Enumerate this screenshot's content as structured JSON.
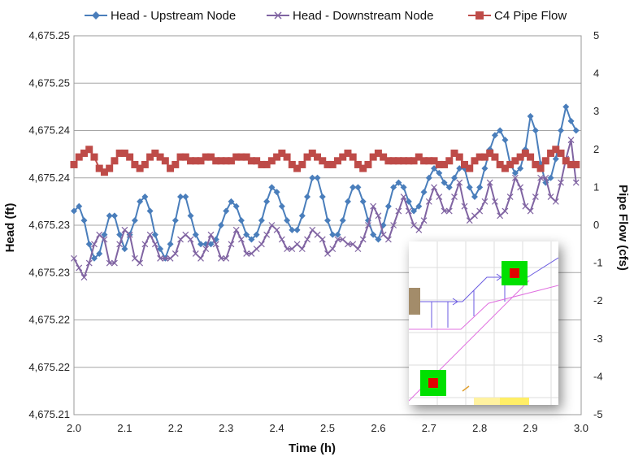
{
  "chart_data": {
    "type": "line",
    "title": "",
    "xlabel": "Time (h)",
    "ylabel": "Head (ft)",
    "y2label": "Pipe Flow (cfs)",
    "xlim": [
      2.0,
      3.0
    ],
    "ylim": [
      0,
      8
    ],
    "y2lim": [
      -5,
      5
    ],
    "x_ticks": [
      "2.0",
      "2.1",
      "2.2",
      "2.3",
      "2.4",
      "2.5",
      "2.6",
      "2.7",
      "2.8",
      "2.9",
      "3.0"
    ],
    "y_ticks": [
      "4,675.21",
      "4,675.22",
      "4,675.22",
      "4,675.23",
      "4,675.23",
      "4,675.24",
      "4,675.24",
      "4,675.25",
      "4,675.25"
    ],
    "y2_ticks": [
      "-5",
      "-4",
      "-3",
      "-2",
      "-1",
      "0",
      "1",
      "2",
      "3",
      "4",
      "5"
    ],
    "grid": true,
    "legend_position": "top",
    "colors": {
      "upstream": "#4a7ebb",
      "downstream": "#8064a2",
      "flow": "#be4b48"
    },
    "series": [
      {
        "name": "Head - Upstream Node",
        "axis": "left",
        "marker": "diamond",
        "x": [
          2.0,
          2.01,
          2.02,
          2.03,
          2.04,
          2.05,
          2.06,
          2.07,
          2.08,
          2.09,
          2.1,
          2.11,
          2.12,
          2.13,
          2.14,
          2.15,
          2.16,
          2.17,
          2.18,
          2.19,
          2.2,
          2.21,
          2.22,
          2.23,
          2.24,
          2.25,
          2.26,
          2.27,
          2.28,
          2.29,
          2.3,
          2.31,
          2.32,
          2.33,
          2.34,
          2.35,
          2.36,
          2.37,
          2.38,
          2.39,
          2.4,
          2.41,
          2.42,
          2.43,
          2.44,
          2.45,
          2.46,
          2.47,
          2.48,
          2.49,
          2.5,
          2.51,
          2.52,
          2.53,
          2.54,
          2.55,
          2.56,
          2.57,
          2.58,
          2.59,
          2.6,
          2.61,
          2.62,
          2.63,
          2.64,
          2.65,
          2.66,
          2.67,
          2.68,
          2.69,
          2.7,
          2.71,
          2.72,
          2.73,
          2.74,
          2.75,
          2.76,
          2.77,
          2.78,
          2.79,
          2.8,
          2.81,
          2.82,
          2.83,
          2.84,
          2.85,
          2.86,
          2.87,
          2.88,
          2.89,
          2.9,
          2.91,
          2.92,
          2.93,
          2.94,
          2.95,
          2.96,
          2.97,
          2.98,
          2.99
        ],
        "y": [
          4.3,
          4.4,
          4.1,
          3.6,
          3.3,
          3.4,
          3.8,
          4.2,
          4.2,
          3.8,
          3.5,
          3.8,
          4.1,
          4.5,
          4.6,
          4.3,
          3.8,
          3.5,
          3.3,
          3.6,
          4.1,
          4.6,
          4.6,
          4.2,
          3.8,
          3.6,
          3.6,
          3.6,
          3.7,
          4.0,
          4.3,
          4.5,
          4.4,
          4.1,
          3.8,
          3.7,
          3.8,
          4.1,
          4.5,
          4.8,
          4.7,
          4.4,
          4.1,
          3.9,
          3.9,
          4.2,
          4.6,
          5.0,
          5.0,
          4.6,
          4.1,
          3.8,
          3.8,
          4.1,
          4.5,
          4.8,
          4.8,
          4.5,
          4.1,
          3.8,
          3.7,
          4.0,
          4.4,
          4.8,
          4.9,
          4.8,
          4.5,
          4.3,
          4.4,
          4.7,
          5.0,
          5.2,
          5.1,
          4.9,
          4.8,
          5.0,
          5.2,
          5.2,
          4.8,
          4.6,
          4.8,
          5.2,
          5.6,
          5.9,
          6.0,
          5.8,
          5.3,
          5.1,
          5.2,
          5.6,
          6.3,
          6.0,
          5.3,
          4.9,
          5.0,
          5.4,
          6.0,
          6.5,
          6.2,
          6.0
        ]
      },
      {
        "name": "Head -  Downstream Node",
        "axis": "left",
        "marker": "x",
        "x": [
          2.0,
          2.01,
          2.02,
          2.03,
          2.04,
          2.05,
          2.06,
          2.07,
          2.08,
          2.09,
          2.1,
          2.11,
          2.12,
          2.13,
          2.14,
          2.15,
          2.16,
          2.17,
          2.18,
          2.19,
          2.2,
          2.21,
          2.22,
          2.23,
          2.24,
          2.25,
          2.26,
          2.27,
          2.28,
          2.29,
          2.3,
          2.31,
          2.32,
          2.33,
          2.34,
          2.35,
          2.36,
          2.37,
          2.38,
          2.39,
          2.4,
          2.41,
          2.42,
          2.43,
          2.44,
          2.45,
          2.46,
          2.47,
          2.48,
          2.49,
          2.5,
          2.51,
          2.52,
          2.53,
          2.54,
          2.55,
          2.56,
          2.57,
          2.58,
          2.59,
          2.6,
          2.61,
          2.62,
          2.63,
          2.64,
          2.65,
          2.66,
          2.67,
          2.68,
          2.69,
          2.7,
          2.71,
          2.72,
          2.73,
          2.74,
          2.75,
          2.76,
          2.77,
          2.78,
          2.79,
          2.8,
          2.81,
          2.82,
          2.83,
          2.84,
          2.85,
          2.86,
          2.87,
          2.88,
          2.89,
          2.9,
          2.91,
          2.92,
          2.93,
          2.94,
          2.95,
          2.96,
          2.97,
          2.98,
          2.99
        ],
        "y": [
          3.3,
          3.1,
          2.9,
          3.2,
          3.6,
          3.8,
          3.7,
          3.2,
          3.2,
          3.6,
          3.9,
          3.8,
          3.3,
          3.2,
          3.6,
          3.8,
          3.6,
          3.3,
          3.3,
          3.3,
          3.4,
          3.7,
          3.8,
          3.7,
          3.4,
          3.3,
          3.5,
          3.8,
          3.6,
          3.3,
          3.3,
          3.6,
          3.9,
          3.7,
          3.4,
          3.4,
          3.5,
          3.6,
          3.8,
          4.0,
          3.9,
          3.7,
          3.5,
          3.5,
          3.6,
          3.5,
          3.7,
          3.9,
          3.8,
          3.7,
          3.4,
          3.5,
          3.7,
          3.7,
          3.6,
          3.6,
          3.5,
          3.7,
          4.0,
          4.4,
          4.2,
          3.8,
          3.7,
          4.0,
          4.3,
          4.6,
          4.3,
          4.0,
          3.9,
          4.1,
          4.5,
          4.8,
          4.6,
          4.3,
          4.3,
          4.6,
          4.9,
          4.4,
          4.1,
          4.2,
          4.3,
          4.5,
          4.9,
          4.5,
          4.2,
          4.3,
          4.6,
          5.0,
          4.8,
          4.4,
          4.3,
          4.6,
          5.0,
          5.0,
          4.6,
          4.5,
          4.9,
          5.4,
          5.8,
          4.9
        ]
      },
      {
        "name": "C4 Pipe Flow",
        "axis": "right",
        "marker": "square",
        "x": [
          2.0,
          2.01,
          2.02,
          2.03,
          2.04,
          2.05,
          2.06,
          2.07,
          2.08,
          2.09,
          2.1,
          2.11,
          2.12,
          2.13,
          2.14,
          2.15,
          2.16,
          2.17,
          2.18,
          2.19,
          2.2,
          2.21,
          2.22,
          2.23,
          2.24,
          2.25,
          2.26,
          2.27,
          2.28,
          2.29,
          2.3,
          2.31,
          2.32,
          2.33,
          2.34,
          2.35,
          2.36,
          2.37,
          2.38,
          2.39,
          2.4,
          2.41,
          2.42,
          2.43,
          2.44,
          2.45,
          2.46,
          2.47,
          2.48,
          2.49,
          2.5,
          2.51,
          2.52,
          2.53,
          2.54,
          2.55,
          2.56,
          2.57,
          2.58,
          2.59,
          2.6,
          2.61,
          2.62,
          2.63,
          2.64,
          2.65,
          2.66,
          2.67,
          2.68,
          2.69,
          2.7,
          2.71,
          2.72,
          2.73,
          2.74,
          2.75,
          2.76,
          2.77,
          2.78,
          2.79,
          2.8,
          2.81,
          2.82,
          2.83,
          2.84,
          2.85,
          2.86,
          2.87,
          2.88,
          2.89,
          2.9,
          2.91,
          2.92,
          2.93,
          2.94,
          2.95,
          2.96,
          2.97,
          2.98,
          2.99
        ],
        "y": [
          1.6,
          1.8,
          1.9,
          2.0,
          1.8,
          1.5,
          1.4,
          1.5,
          1.7,
          1.9,
          1.9,
          1.8,
          1.6,
          1.5,
          1.6,
          1.8,
          1.9,
          1.8,
          1.7,
          1.5,
          1.6,
          1.8,
          1.8,
          1.7,
          1.7,
          1.7,
          1.8,
          1.8,
          1.7,
          1.7,
          1.7,
          1.7,
          1.8,
          1.8,
          1.8,
          1.7,
          1.7,
          1.6,
          1.6,
          1.7,
          1.8,
          1.9,
          1.8,
          1.6,
          1.5,
          1.6,
          1.8,
          1.9,
          1.8,
          1.7,
          1.6,
          1.6,
          1.7,
          1.8,
          1.9,
          1.8,
          1.6,
          1.5,
          1.6,
          1.8,
          1.9,
          1.8,
          1.7,
          1.7,
          1.7,
          1.7,
          1.7,
          1.7,
          1.8,
          1.7,
          1.7,
          1.7,
          1.6,
          1.6,
          1.7,
          1.9,
          1.8,
          1.6,
          1.5,
          1.7,
          1.8,
          1.8,
          1.9,
          1.8,
          1.6,
          1.5,
          1.6,
          1.7,
          1.8,
          1.9,
          1.8,
          1.6,
          1.5,
          1.7,
          1.9,
          2.0,
          1.9,
          1.7,
          1.6,
          1.6
        ]
      }
    ]
  }
}
